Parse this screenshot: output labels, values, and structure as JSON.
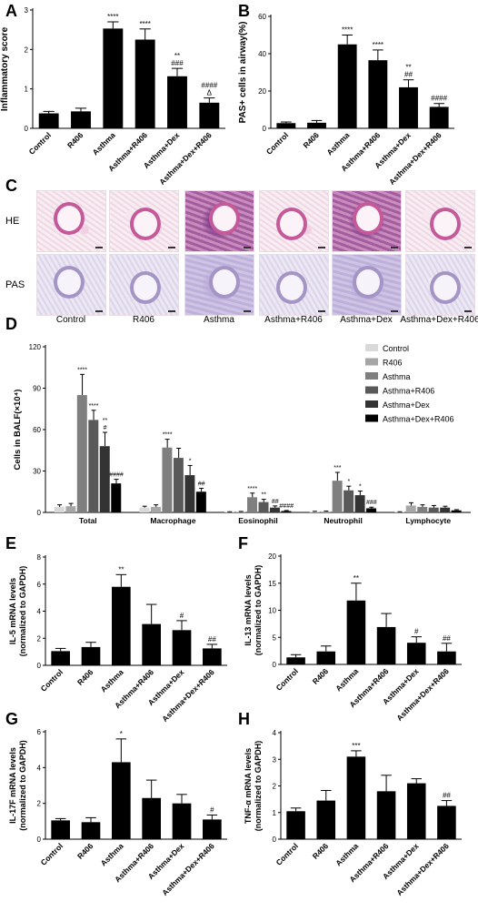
{
  "panel_letters": [
    "A",
    "B",
    "C",
    "D",
    "E",
    "F",
    "G",
    "H"
  ],
  "histology": {
    "row_labels": [
      "HE",
      "PAS"
    ],
    "columns": [
      "Control",
      "R406",
      "Asthma",
      "Asthma+R406",
      "Asthma+Dex",
      "Asthma+Dex+R406"
    ]
  },
  "colors": {
    "bar": "#000000",
    "d_series": [
      "#d9d9d9",
      "#a6a6a6",
      "#7f7f7f",
      "#595959",
      "#333333",
      "#000000"
    ]
  },
  "chart_data": [
    {
      "id": "A",
      "type": "bar",
      "categories": [
        "Control",
        "R406",
        "Asthma",
        "Asthma+R406",
        "Asthma+Dex",
        "Asthma+Dex+R406"
      ],
      "values": [
        0.38,
        0.43,
        2.53,
        2.25,
        1.32,
        0.65
      ],
      "errors": [
        0.05,
        0.08,
        0.17,
        0.27,
        0.2,
        0.12
      ],
      "annotations": [
        "",
        "",
        "****",
        "****",
        "**\n###",
        "####\nΔ"
      ],
      "ylabel": "Inflammatory score",
      "ylim": [
        0,
        3
      ],
      "yticks": [
        0,
        1,
        2,
        3
      ]
    },
    {
      "id": "B",
      "type": "bar",
      "categories": [
        "Control",
        "R406",
        "Asthma",
        "Asthma+R406",
        "Asthma+Dex",
        "Asthma+Dex+R406"
      ],
      "values": [
        2.8,
        3.0,
        45,
        36.5,
        22,
        11.5
      ],
      "errors": [
        0.6,
        1.2,
        5,
        5.5,
        4,
        1.8
      ],
      "annotations": [
        "",
        "",
        "****",
        "****",
        "**\n##",
        "####"
      ],
      "ylabel": "PAS+ cells in airway(%)",
      "ylim": [
        0,
        60
      ],
      "yticks": [
        0,
        20,
        40,
        60
      ]
    },
    {
      "id": "D",
      "type": "bar",
      "categories": [
        "Total",
        "Macrophage",
        "Eosinophil",
        "Neutrophil",
        "Lymphocyte"
      ],
      "series": [
        {
          "name": "Control",
          "values": [
            4,
            3.5,
            0.3,
            0.5,
            0.3
          ],
          "errors": [
            1.5,
            1,
            0.2,
            0.3,
            0.2
          ]
        },
        {
          "name": "R406",
          "values": [
            4.5,
            4,
            0.4,
            0.6,
            5
          ],
          "errors": [
            2,
            1.5,
            0.3,
            0.4,
            2
          ]
        },
        {
          "name": "Asthma",
          "values": [
            85,
            47,
            11,
            23,
            4
          ],
          "errors": [
            15,
            6,
            3,
            6,
            1.5
          ]
        },
        {
          "name": "Asthma+R406",
          "values": [
            67,
            39.5,
            7.5,
            16,
            3.5
          ],
          "errors": [
            7,
            7,
            2,
            3,
            1.5
          ]
        },
        {
          "name": "Asthma+Dex",
          "values": [
            48,
            27,
            3.5,
            12.5,
            3.5
          ],
          "errors": [
            10,
            7,
            1.2,
            3,
            1
          ]
        },
        {
          "name": "Asthma+Dex+R406",
          "values": [
            21,
            15,
            1,
            3,
            1.5
          ],
          "errors": [
            3,
            2.5,
            0.4,
            0.8,
            0.5
          ]
        }
      ],
      "annotations": [
        [
          "",
          "",
          "****",
          "****",
          "**\n#",
          "####"
        ],
        [
          "",
          "",
          "****",
          "",
          "*",
          "##"
        ],
        [
          "",
          "",
          "****",
          "**",
          "##",
          "####"
        ],
        [
          "",
          "",
          "***",
          "*",
          "*",
          "###"
        ],
        [
          "",
          "",
          "",
          "",
          "",
          ""
        ]
      ],
      "ylabel": "Cells in BALF(×10⁴)",
      "ylim": [
        0,
        120
      ],
      "yticks": [
        0,
        30,
        60,
        90,
        120
      ]
    },
    {
      "id": "E",
      "type": "bar",
      "categories": [
        "Control",
        "R406",
        "Asthma",
        "Asthma+R406",
        "Asthma+Dex",
        "Asthma+Dex+R406"
      ],
      "values": [
        1.05,
        1.35,
        5.8,
        3.05,
        2.6,
        1.25
      ],
      "errors": [
        0.2,
        0.35,
        0.9,
        1.45,
        0.7,
        0.3
      ],
      "annotations": [
        "",
        "",
        "**",
        "",
        "#",
        "##"
      ],
      "ylabel": "IL-5 mRNA levels\n(normalized to GAPDH)",
      "ylim": [
        0,
        8
      ],
      "yticks": [
        0,
        2,
        4,
        6,
        8
      ]
    },
    {
      "id": "F",
      "type": "bar",
      "categories": [
        "Control",
        "R406",
        "Asthma",
        "Asthma+R406",
        "Asthma+Dex",
        "Asthma+Dex+R406"
      ],
      "values": [
        1.3,
        2.4,
        11.8,
        6.9,
        4.0,
        2.4
      ],
      "errors": [
        0.5,
        1.0,
        3.2,
        2.5,
        1.1,
        1.5
      ],
      "annotations": [
        "",
        "",
        "**",
        "",
        "#",
        "##"
      ],
      "ylabel": "IL-13 mRNA levels\n(normalized to GAPDH)",
      "ylim": [
        0,
        20
      ],
      "yticks": [
        0,
        5,
        10,
        15,
        20
      ]
    },
    {
      "id": "G",
      "type": "bar",
      "categories": [
        "Control",
        "R406",
        "Asthma",
        "Asthma+R406",
        "Asthma+Dex",
        "Asthma+Dex+R406"
      ],
      "values": [
        1.05,
        0.95,
        4.3,
        2.3,
        2.0,
        1.1
      ],
      "errors": [
        0.1,
        0.25,
        1.3,
        1.0,
        0.5,
        0.25
      ],
      "annotations": [
        "",
        "",
        "*",
        "",
        "",
        "#"
      ],
      "ylabel": "IL-17F mRNA levels\n(normalized to GAPDH)",
      "ylim": [
        0,
        6
      ],
      "yticks": [
        0,
        2,
        4,
        6
      ]
    },
    {
      "id": "H",
      "type": "bar",
      "categories": [
        "Control",
        "R406",
        "Asthma",
        "Asthma+R406",
        "Asthma+Dex",
        "Asthma+Dex+R406"
      ],
      "values": [
        1.05,
        1.45,
        3.1,
        1.8,
        2.1,
        1.25
      ],
      "errors": [
        0.12,
        0.38,
        0.22,
        0.6,
        0.17,
        0.2
      ],
      "annotations": [
        "",
        "",
        "***",
        "",
        "",
        "##"
      ],
      "ylabel": "TNF-α mRNA levels\n(normalized to GAPDH)",
      "ylim": [
        0,
        4
      ],
      "yticks": [
        0,
        1,
        2,
        3,
        4
      ]
    }
  ]
}
